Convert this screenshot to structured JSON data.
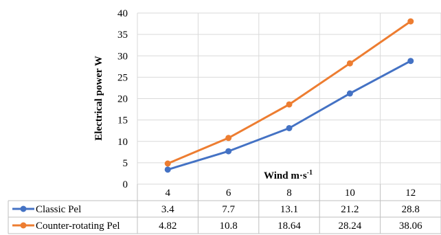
{
  "chart_data": {
    "type": "line",
    "x": [
      "4",
      "6",
      "8",
      "10",
      "12"
    ],
    "series": [
      {
        "name": "Classic Pel",
        "values": [
          3.4,
          7.7,
          13.1,
          21.2,
          28.8
        ],
        "value_labels": [
          "3.4",
          "7.7",
          "13.1",
          "21.2",
          "28.8"
        ],
        "color": "#4472C4"
      },
      {
        "name": "Counter-rotating Pel",
        "values": [
          4.82,
          10.8,
          18.64,
          28.24,
          38.06
        ],
        "value_labels": [
          "4.82",
          "10.8",
          "18.64",
          "28.24",
          "38.06"
        ],
        "color": "#ED7D31"
      }
    ],
    "yticks": [
      "0",
      "5",
      "10",
      "15",
      "20",
      "25",
      "30",
      "35",
      "40"
    ],
    "ylim": [
      0,
      40
    ],
    "ylabel": "Electrical power W",
    "xlabel_main": "Wind m·s",
    "xlabel_sup": "-1",
    "grid": true,
    "legend": "data-table"
  }
}
